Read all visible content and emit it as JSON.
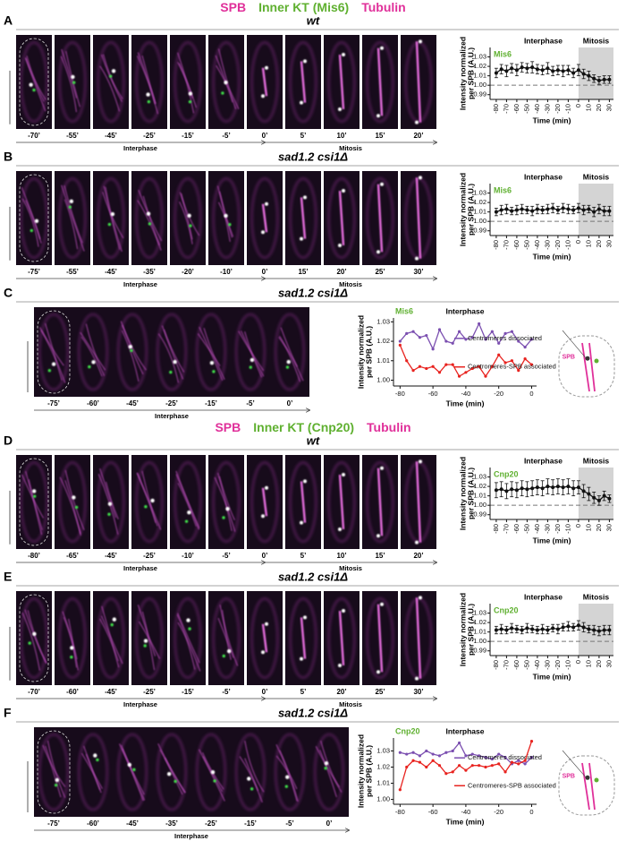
{
  "headers": [
    {
      "spb": "SPB",
      "kt": "Inner KT (Mis6)",
      "tubulin": "Tubulin"
    },
    {
      "spb": "SPB",
      "kt": "Inner KT (Cnp20)",
      "tubulin": "Tubulin"
    }
  ],
  "panels": [
    {
      "label": "A",
      "title": "wt",
      "times": [
        "-70’",
        "-55’",
        "-45’",
        "-25’",
        "-15’",
        "-5’",
        "0’",
        "5’",
        "10’",
        "15’",
        "20’"
      ],
      "phases": [
        "Interphase",
        "Mitosis"
      ]
    },
    {
      "label": "B",
      "title": "sad1.2 csi1Δ",
      "times": [
        "-75’",
        "-55’",
        "-45’",
        "-35’",
        "-20’",
        "-10’",
        "0’",
        "15’",
        "20’",
        "25’",
        "30’"
      ],
      "phases": [
        "Interphase",
        "Mitosis"
      ]
    },
    {
      "label": "C",
      "title": "sad1.2 csi1Δ",
      "times": [
        "-75’",
        "-60’",
        "-45’",
        "-25’",
        "-15’",
        "-5’",
        "0’"
      ],
      "phases": [
        "Interphase"
      ]
    },
    {
      "label": "D",
      "title": "wt",
      "times": [
        "-80’",
        "-65’",
        "-45’",
        "-25’",
        "-10’",
        "-5’",
        "0’",
        "5’",
        "10’",
        "15’",
        "20’"
      ],
      "phases": [
        "Interphase",
        "Mitosis"
      ]
    },
    {
      "label": "E",
      "title": "sad1.2 csi1Δ",
      "times": [
        "-70’",
        "-60’",
        "-45’",
        "-25’",
        "-15’",
        "-5’",
        "0’",
        "5’",
        "20’",
        "25’",
        "30’"
      ],
      "phases": [
        "Interphase",
        "Mitosis"
      ]
    },
    {
      "label": "F",
      "title": "sad1.2 csi1Δ",
      "times": [
        "-75’",
        "-60’",
        "-45’",
        "-35’",
        "-25’",
        "-15’",
        "-5’",
        "0’"
      ],
      "phases": [
        "Interphase"
      ]
    }
  ],
  "chart_data": [
    {
      "type": "line",
      "marker_label": "Mis6",
      "phase_labels": [
        "Interphase",
        "Mitosis"
      ],
      "y_label": [
        "Intensity normalized",
        "per SPB (A.U.)"
      ],
      "x_label": "Time (min)",
      "x": [
        -80,
        -75,
        -70,
        -65,
        -60,
        -55,
        -50,
        -45,
        -40,
        -35,
        -30,
        -25,
        -20,
        -15,
        -10,
        -5,
        0,
        5,
        10,
        15,
        20,
        25,
        30
      ],
      "series": [
        {
          "color": "#111111",
          "values": [
            1.013,
            1.017,
            1.015,
            1.018,
            1.016,
            1.019,
            1.018,
            1.019,
            1.017,
            1.016,
            1.018,
            1.015,
            1.016,
            1.015,
            1.016,
            1.013,
            1.016,
            1.012,
            1.01,
            1.007,
            1.005,
            1.006,
            1.006
          ],
          "errors": [
            0.005,
            0.005,
            0.006,
            0.005,
            0.006,
            0.005,
            0.005,
            0.006,
            0.005,
            0.005,
            0.006,
            0.005,
            0.005,
            0.006,
            0.005,
            0.005,
            0.006,
            0.005,
            0.005,
            0.004,
            0.004,
            0.004,
            0.004
          ]
        }
      ],
      "xlim": [
        -86,
        34
      ],
      "ylim": [
        0.985,
        1.04
      ],
      "xticks": [
        -80,
        -70,
        -60,
        -50,
        -40,
        -30,
        -20,
        -10,
        0,
        10,
        20,
        30
      ],
      "yticks": [
        0.99,
        {
          "value": 1,
          "label": "1.00"
        },
        1.01,
        1.02,
        1.03
      ],
      "shade_from": 0,
      "reference_line": 1
    },
    {
      "type": "line",
      "marker_label": "Mis6",
      "phase_labels": [
        "Interphase",
        "Mitosis"
      ],
      "y_label": [
        "Intensity normalized",
        "per SPB (A.U.)"
      ],
      "x_label": "Time (min)",
      "x": [
        -80,
        -75,
        -70,
        -65,
        -60,
        -55,
        -50,
        -45,
        -40,
        -35,
        -30,
        -25,
        -20,
        -15,
        -10,
        -5,
        0,
        5,
        10,
        15,
        20,
        25,
        30
      ],
      "series": [
        {
          "color": "#111111",
          "values": [
            1.01,
            1.012,
            1.013,
            1.011,
            1.012,
            1.013,
            1.012,
            1.011,
            1.013,
            1.012,
            1.013,
            1.014,
            1.012,
            1.014,
            1.013,
            1.012,
            1.014,
            1.012,
            1.013,
            1.01,
            1.013,
            1.011,
            1.011
          ],
          "errors": [
            0.004,
            0.005,
            0.005,
            0.004,
            0.005,
            0.005,
            0.004,
            0.005,
            0.005,
            0.004,
            0.005,
            0.005,
            0.004,
            0.005,
            0.005,
            0.004,
            0.005,
            0.005,
            0.004,
            0.005,
            0.005,
            0.005,
            0.005
          ]
        }
      ],
      "xlim": [
        -86,
        34
      ],
      "ylim": [
        0.985,
        1.04
      ],
      "xticks": [
        -80,
        -70,
        -60,
        -50,
        -40,
        -30,
        -20,
        -10,
        0,
        10,
        20,
        30
      ],
      "yticks": [
        0.99,
        {
          "value": 1,
          "label": "1.00"
        },
        1.01,
        1.02,
        1.03
      ],
      "shade_from": 0,
      "reference_line": 1
    },
    {
      "type": "line",
      "marker_label": "Mis6",
      "phase_labels": [
        "Interphase"
      ],
      "y_label": [
        "Intensity normalized",
        "per SPB (A.U.)"
      ],
      "x_label": "Time (min)",
      "schematic_label": "SPB",
      "x": [
        -80,
        -76,
        -72,
        -68,
        -64,
        -60,
        -56,
        -52,
        -48,
        -44,
        -40,
        -36,
        -32,
        -28,
        -24,
        -20,
        -16,
        -12,
        -8,
        -4,
        0
      ],
      "series": [
        {
          "name": "Centromeres dissociated",
          "color": "#7b4fb0",
          "values": [
            1.02,
            1.024,
            1.025,
            1.022,
            1.023,
            1.016,
            1.026,
            1.02,
            1.019,
            1.025,
            1.021,
            1.022,
            1.029,
            1.021,
            1.025,
            1.019,
            1.024,
            1.025,
            1.02,
            1.017,
            1.021
          ]
        },
        {
          "name": "Centromeres-SPB associated",
          "color": "#e8231f",
          "values": [
            1.018,
            1.01,
            1.005,
            1.007,
            1.006,
            1.007,
            1.004,
            1.008,
            1.008,
            1.002,
            1.004,
            1.006,
            1.007,
            1.002,
            1.007,
            1.013,
            1.009,
            1.01,
            1.005,
            1.011,
            1.008
          ]
        }
      ],
      "xlim": [
        -84,
        3
      ],
      "ylim": [
        0.997,
        1.032
      ],
      "xticks": [
        -80,
        -60,
        -40,
        -20,
        0
      ],
      "yticks": [
        {
          "value": 1,
          "label": "1.00"
        },
        1.01,
        1.02,
        1.03
      ]
    },
    {
      "type": "line",
      "marker_label": "Cnp20",
      "phase_labels": [
        "Interphase",
        "Mitosis"
      ],
      "y_label": [
        "Intensity normalized",
        "per SPB (A.U.)"
      ],
      "x_label": "Time (min)",
      "x": [
        -80,
        -75,
        -70,
        -65,
        -60,
        -55,
        -50,
        -45,
        -40,
        -35,
        -30,
        -25,
        -20,
        -15,
        -10,
        -5,
        0,
        5,
        10,
        15,
        20,
        25,
        30
      ],
      "series": [
        {
          "color": "#111111",
          "values": [
            1.016,
            1.017,
            1.015,
            1.017,
            1.016,
            1.018,
            1.017,
            1.018,
            1.019,
            1.018,
            1.02,
            1.019,
            1.02,
            1.019,
            1.02,
            1.018,
            1.019,
            1.015,
            1.012,
            1.008,
            1.005,
            1.01,
            1.007
          ],
          "errors": [
            0.008,
            0.008,
            0.008,
            0.008,
            0.008,
            0.008,
            0.008,
            0.008,
            0.008,
            0.008,
            0.008,
            0.008,
            0.008,
            0.008,
            0.008,
            0.008,
            0.007,
            0.007,
            0.007,
            0.006,
            0.005,
            0.005,
            0.004
          ]
        }
      ],
      "xlim": [
        -86,
        34
      ],
      "ylim": [
        0.985,
        1.04
      ],
      "xticks": [
        -80,
        -70,
        -60,
        -50,
        -40,
        -30,
        -20,
        -10,
        0,
        10,
        20,
        30
      ],
      "yticks": [
        0.99,
        {
          "value": 1,
          "label": "1.00"
        },
        1.01,
        1.02,
        1.03
      ],
      "shade_from": 0,
      "reference_line": 1
    },
    {
      "type": "line",
      "marker_label": "Cnp20",
      "phase_labels": [
        "Interphase",
        "Mitosis"
      ],
      "y_label": [
        "Intensity normalized",
        "per SPB (A.U.)"
      ],
      "x_label": "Time (min)",
      "x": [
        -80,
        -75,
        -70,
        -65,
        -60,
        -55,
        -50,
        -45,
        -40,
        -35,
        -30,
        -25,
        -20,
        -15,
        -10,
        -5,
        0,
        5,
        10,
        15,
        20,
        25,
        30
      ],
      "series": [
        {
          "color": "#111111",
          "values": [
            1.012,
            1.013,
            1.012,
            1.014,
            1.013,
            1.012,
            1.014,
            1.013,
            1.012,
            1.013,
            1.012,
            1.014,
            1.013,
            1.015,
            1.016,
            1.015,
            1.017,
            1.015,
            1.013,
            1.012,
            1.011,
            1.012,
            1.012
          ],
          "errors": [
            0.004,
            0.005,
            0.004,
            0.005,
            0.004,
            0.004,
            0.005,
            0.004,
            0.004,
            0.005,
            0.004,
            0.004,
            0.005,
            0.004,
            0.005,
            0.004,
            0.005,
            0.005,
            0.004,
            0.005,
            0.005,
            0.005,
            0.005
          ]
        }
      ],
      "xlim": [
        -86,
        34
      ],
      "ylim": [
        0.985,
        1.04
      ],
      "xticks": [
        -80,
        -70,
        -60,
        -50,
        -40,
        -30,
        -20,
        -10,
        0,
        10,
        20,
        30
      ],
      "yticks": [
        0.99,
        {
          "value": 1,
          "label": "1.00"
        },
        1.01,
        1.02,
        1.03
      ],
      "shade_from": 0,
      "reference_line": 1
    },
    {
      "type": "line",
      "marker_label": "Cnp20",
      "phase_labels": [
        "Interphase"
      ],
      "y_label": [
        "Intensity normalized",
        "per SPB (A.U.)"
      ],
      "x_label": "Time (min)",
      "schematic_label": "SPB",
      "x": [
        -80,
        -76,
        -72,
        -68,
        -64,
        -60,
        -56,
        -52,
        -48,
        -44,
        -40,
        -36,
        -32,
        -28,
        -24,
        -20,
        -16,
        -12,
        -8,
        -4,
        0
      ],
      "series": [
        {
          "name": "Centromeres dissociated",
          "color": "#7b4fb0",
          "values": [
            1.029,
            1.028,
            1.029,
            1.027,
            1.03,
            1.028,
            1.027,
            1.029,
            1.03,
            1.035,
            1.027,
            1.028,
            1.027,
            1.026,
            1.025,
            1.028,
            1.026,
            1.022,
            1.024,
            1.022,
            1.026
          ]
        },
        {
          "name": "Centromeres-SPB associated",
          "color": "#e8231f",
          "values": [
            1.006,
            1.02,
            1.024,
            1.023,
            1.02,
            1.024,
            1.021,
            1.016,
            1.017,
            1.021,
            1.018,
            1.021,
            1.021,
            1.02,
            1.021,
            1.022,
            1.017,
            1.023,
            1.022,
            1.024,
            1.036
          ]
        }
      ],
      "xlim": [
        -84,
        3
      ],
      "ylim": [
        0.997,
        1.038
      ],
      "xticks": [
        -80,
        -60,
        -40,
        -20,
        0
      ],
      "yticks": [
        {
          "value": 1,
          "label": "1.00"
        },
        1.01,
        1.02,
        1.03
      ]
    }
  ]
}
